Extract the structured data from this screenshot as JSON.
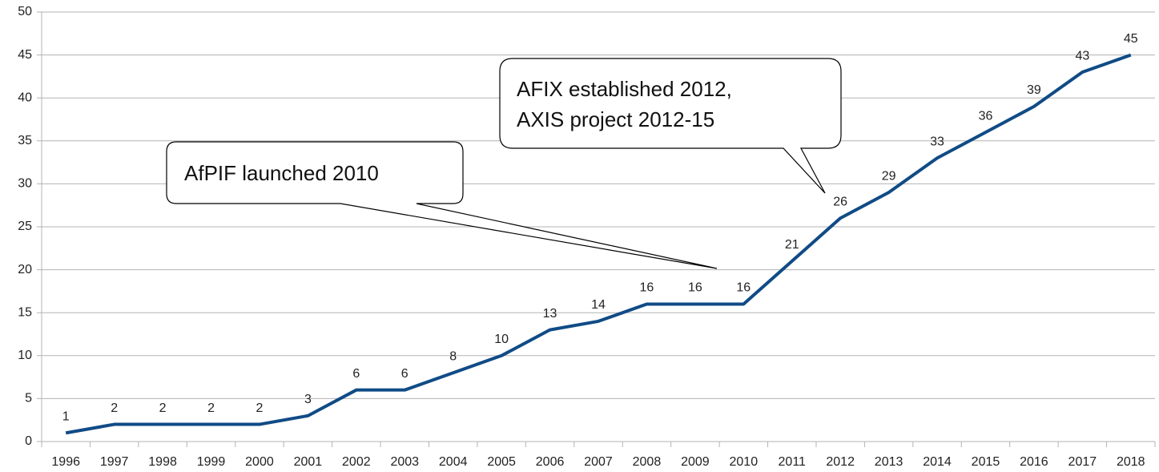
{
  "chart_data": {
    "type": "line",
    "categories": [
      "1996",
      "1997",
      "1998",
      "1999",
      "2000",
      "2001",
      "2002",
      "2003",
      "2004",
      "2005",
      "2006",
      "2007",
      "2008",
      "2009",
      "2010",
      "2011",
      "2012",
      "2013",
      "2014",
      "2015",
      "2016",
      "2017",
      "2018"
    ],
    "series": [
      {
        "color": "#104b86",
        "values": [
          1,
          2,
          2,
          2,
          2,
          3,
          6,
          6,
          8,
          10,
          13,
          14,
          16,
          16,
          16,
          21,
          26,
          29,
          33,
          36,
          39,
          43,
          45
        ]
      }
    ],
    "ylim": [
      0,
      50
    ],
    "yticks": [
      0,
      5,
      10,
      15,
      20,
      25,
      30,
      35,
      40,
      45,
      50
    ],
    "grid": true,
    "annotations": [
      {
        "lines": [
          "AfPIF launched 2010"
        ]
      },
      {
        "lines": [
          "AFIX established 2012,",
          "AXIS project 2012-15"
        ]
      }
    ]
  }
}
